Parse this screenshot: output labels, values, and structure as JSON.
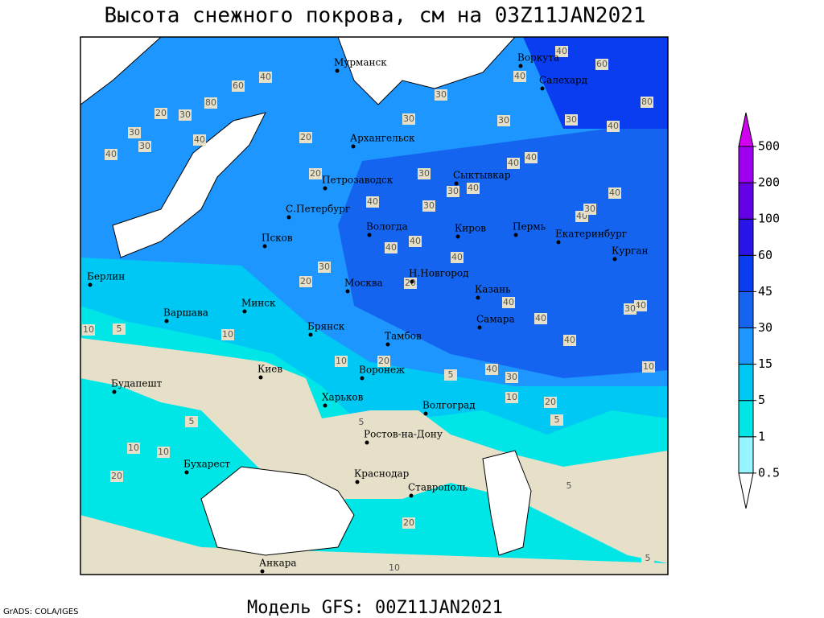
{
  "title": "Высота снежного покрова, см на 03Z11JAN2021",
  "footer": {
    "credit": "GrADS: COLA/IGES",
    "model": "Модель GFS: 00Z11JAN2021"
  },
  "legend": {
    "levels": [
      0.5,
      1,
      5,
      15,
      30,
      45,
      60,
      100,
      200,
      500
    ],
    "colors": [
      "#96f5ff",
      "#00e6e6",
      "#00c8f5",
      "#1e96ff",
      "#1464f0",
      "#0a3cf0",
      "#2814e6",
      "#6400e6",
      "#a000f0"
    ],
    "under_color": "#ffffff",
    "over_color": "#d200f0"
  },
  "cities": [
    "Мурманск",
    "Воркута",
    "Салехард",
    "Архангельск",
    "Петрозаводск",
    "Сыктывкар",
    "С.Петербург",
    "Вологда",
    "Киров",
    "Пермь",
    "Екатеринбург",
    "Курган",
    "Псков",
    "Берлин",
    "Москва",
    "Н.Новгород",
    "Казань",
    "Минск",
    "Варшава",
    "Самара",
    "Брянск",
    "Тамбов",
    "Воронеж",
    "Киев",
    "Будапешт",
    "Харьков",
    "Волгоград",
    "Ростов-на-Дону",
    "Бухарест",
    "Краснодар",
    "Ставрополь",
    "Анкара"
  ],
  "contour_labels": [
    60,
    40,
    40,
    80,
    60,
    80,
    40,
    30,
    20,
    30,
    40,
    30,
    30,
    40,
    30,
    30,
    30,
    40,
    20,
    40,
    20,
    30,
    40,
    30,
    40,
    40,
    40,
    30,
    40,
    30,
    40,
    40,
    40,
    30,
    20,
    20,
    40,
    40,
    30,
    40,
    10,
    5,
    10,
    40,
    10,
    20,
    5,
    40,
    30,
    10,
    10,
    20,
    5,
    5,
    5,
    10,
    10,
    20,
    5,
    20,
    5,
    10
  ]
}
